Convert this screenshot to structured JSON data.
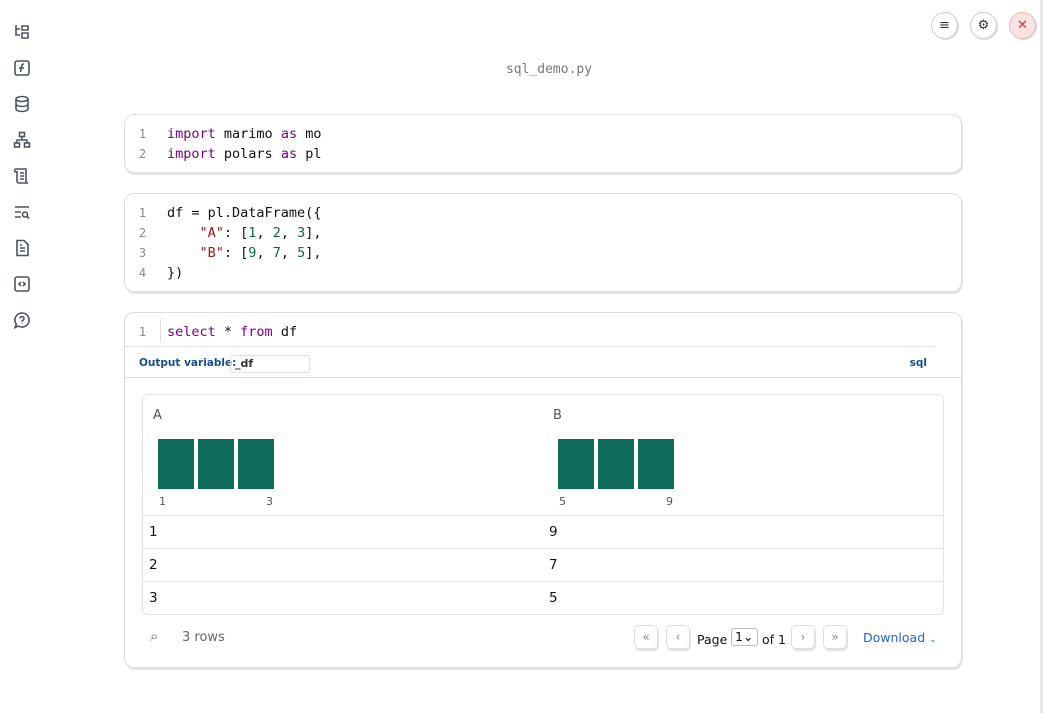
{
  "sidebar": {
    "items": [
      {
        "icon": "file-tree-icon"
      },
      {
        "icon": "function-icon"
      },
      {
        "icon": "database-icon"
      },
      {
        "icon": "dependency-graph-icon"
      },
      {
        "icon": "scroll-icon"
      },
      {
        "icon": "search-list-icon"
      },
      {
        "icon": "document-icon"
      },
      {
        "icon": "code-snippet-icon"
      },
      {
        "icon": "help-chat-icon"
      }
    ]
  },
  "header": {
    "title": "sql_demo.py"
  },
  "cells": {
    "c1": {
      "lines": [
        "1",
        "2"
      ]
    },
    "c2": {
      "lines": [
        "1",
        "2",
        "3",
        "4"
      ]
    },
    "c3": {
      "lines": [
        "1"
      ],
      "output_variable_label": "Output variable:",
      "output_variable": "_df",
      "language": "sql"
    }
  },
  "table": {
    "columns": [
      {
        "name": "A",
        "min": "1",
        "max": "3"
      },
      {
        "name": "B",
        "min": "5",
        "max": "9"
      }
    ],
    "rows": [
      [
        "1",
        "9"
      ],
      [
        "2",
        "7"
      ],
      [
        "3",
        "5"
      ]
    ],
    "bar_color": "#0f6b5a",
    "row_count": "3 rows",
    "page_label": "Page",
    "page": "1",
    "of_label": "of 1",
    "download": "Download"
  }
}
